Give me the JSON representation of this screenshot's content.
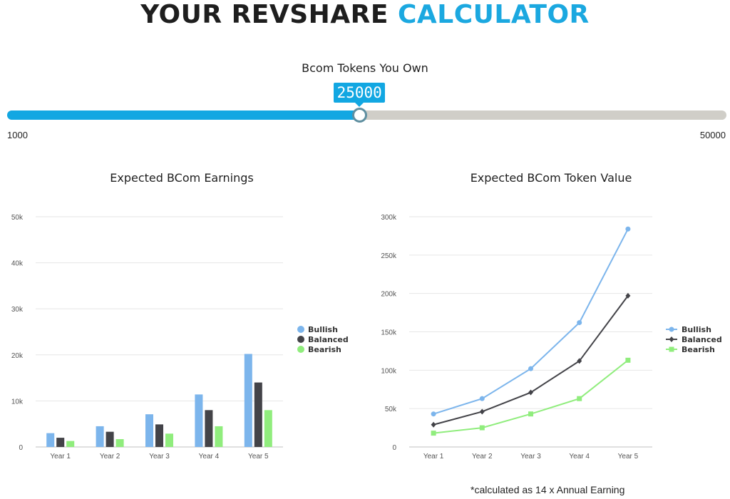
{
  "header": {
    "title_main": "YOUR REVSHARE ",
    "title_accent": "CALCULATOR",
    "accent_color": "#1ba8e0"
  },
  "slider": {
    "label": "Bcom Tokens You Own",
    "value": 25000,
    "value_label": "25000",
    "min": 1000,
    "max": 50000,
    "min_label": "1000",
    "max_label": "50000",
    "fill_color": "#12a7e2",
    "track_color": "#d0cec8"
  },
  "chart_data": [
    {
      "type": "bar",
      "title": "Expected BCom Earnings",
      "categories": [
        "Year 1",
        "Year 2",
        "Year 3",
        "Year 4",
        "Year 5"
      ],
      "series": [
        {
          "name": "Bullish",
          "color": "#7cb5ec",
          "values": [
            3000,
            4500,
            7100,
            11400,
            20200
          ]
        },
        {
          "name": "Balanced",
          "color": "#434348",
          "values": [
            2000,
            3300,
            4900,
            8000,
            14000
          ]
        },
        {
          "name": "Bearish",
          "color": "#90ed7d",
          "values": [
            1300,
            1700,
            2900,
            4500,
            8000
          ]
        }
      ],
      "ylim": [
        0,
        50000
      ],
      "yticks": [
        0,
        10000,
        20000,
        30000,
        40000,
        50000
      ],
      "ytick_labels": [
        "0",
        "10k",
        "20k",
        "30k",
        "40k",
        "50k"
      ],
      "xlabel": "",
      "ylabel": "",
      "grid": true,
      "legend": "right"
    },
    {
      "type": "line",
      "title": "Expected BCom Token Value",
      "categories": [
        "Year 1",
        "Year 2",
        "Year 3",
        "Year 4",
        "Year 5"
      ],
      "series": [
        {
          "name": "Bullish",
          "color": "#7cb5ec",
          "marker": "circle",
          "values": [
            43000,
            63000,
            102000,
            162000,
            284000
          ]
        },
        {
          "name": "Balanced",
          "color": "#434348",
          "marker": "diamond",
          "values": [
            29000,
            46000,
            71000,
            112000,
            197000
          ]
        },
        {
          "name": "Bearish",
          "color": "#90ed7d",
          "marker": "square",
          "values": [
            18000,
            25000,
            43000,
            63000,
            113000
          ]
        }
      ],
      "ylim": [
        0,
        300000
      ],
      "yticks": [
        0,
        50000,
        100000,
        150000,
        200000,
        250000,
        300000
      ],
      "ytick_labels": [
        "0",
        "50k",
        "100k",
        "150k",
        "200k",
        "250k",
        "300k"
      ],
      "xlabel": "",
      "ylabel": "",
      "grid": true,
      "legend": "right"
    }
  ],
  "footnote": "*calculated as 14 x Annual Earning"
}
